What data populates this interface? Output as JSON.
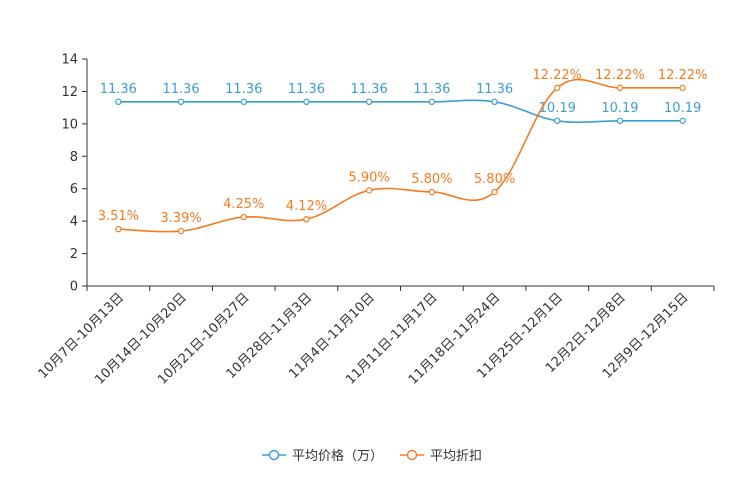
{
  "chart_data": {
    "type": "line",
    "categories": [
      "10月7日-10月13日",
      "10月14日-10月20日",
      "10月21日-10月27日",
      "10月28日-11月3日",
      "11月4日-11月10日",
      "11月11日-11月17日",
      "11月18日-11月24日",
      "11月25日-12月1日",
      "12月2日-12月8日",
      "12月9日-12月15日"
    ],
    "series": [
      {
        "name": "平均价格（万）",
        "color": "#3b9ed1",
        "values": [
          11.36,
          11.36,
          11.36,
          11.36,
          11.36,
          11.36,
          11.36,
          10.19,
          10.19,
          10.19
        ],
        "labels": [
          "11.36",
          "11.36",
          "11.36",
          "11.36",
          "11.36",
          "11.36",
          "11.36",
          "10.19",
          "10.19",
          "10.19"
        ]
      },
      {
        "name": "平均折扣",
        "color": "#f47b20",
        "values": [
          3.51,
          3.39,
          4.25,
          4.12,
          5.9,
          5.8,
          5.8,
          12.22,
          12.22,
          12.22
        ],
        "labels": [
          "3.51%",
          "3.39%",
          "4.25%",
          "4.12%",
          "5.90%",
          "5.80%",
          "5.80%",
          "12.22%",
          "12.22%",
          "12.22%"
        ]
      }
    ],
    "yticks": [
      "0",
      "2",
      "4",
      "6",
      "8",
      "10",
      "12",
      "14"
    ],
    "ylim": [
      0,
      14
    ],
    "title": "",
    "xlabel": "",
    "ylabel": "",
    "legend_position": "bottom-center"
  }
}
